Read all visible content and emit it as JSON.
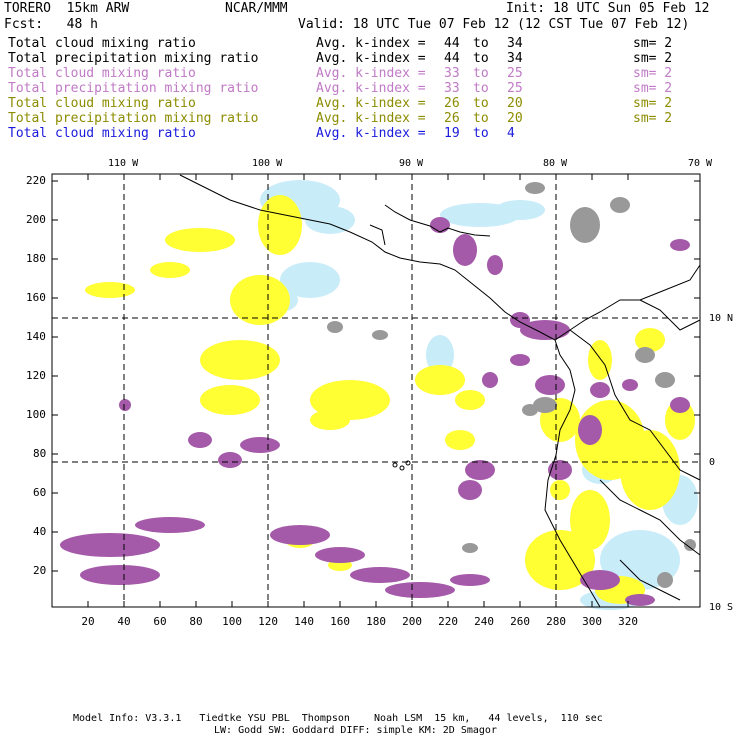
{
  "header": {
    "model": "TORERO  15km ARW",
    "org": "NCAR/MMM",
    "init": "Init: 18 UTC Sun 05 Feb 12",
    "fcst": "Fcst:   48 h",
    "valid": "Valid: 18 UTC Tue 07 Feb 12 (12 CST Tue 07 Feb 12)"
  },
  "legend": [
    {
      "field": "Total cloud mixing ratio",
      "avg": "Avg. k-index =",
      "from": "44",
      "to_word": "to",
      "to": "34",
      "sm": "sm= 2",
      "color": "#000000"
    },
    {
      "field": "Total precipitation mixing ratio",
      "avg": "Avg. k-index =",
      "from": "44",
      "to_word": "to",
      "to": "34",
      "sm": "sm= 2",
      "color": "#000000"
    },
    {
      "field": "Total cloud mixing ratio",
      "avg": "Avg. k-index =",
      "from": "33",
      "to_word": "to",
      "to": "25",
      "sm": "sm= 2",
      "color": "#c07ac6"
    },
    {
      "field": "Total precipitation mixing ratio",
      "avg": "Avg. k-index =",
      "from": "33",
      "to_word": "to",
      "to": "25",
      "sm": "sm= 2",
      "color": "#c07ac6"
    },
    {
      "field": "Total cloud mixing ratio",
      "avg": "Avg. k-index =",
      "from": "26",
      "to_word": "to",
      "to": "20",
      "sm": "sm= 2",
      "color": "#8c8c00"
    },
    {
      "field": "Total precipitation mixing ratio",
      "avg": "Avg. k-index =",
      "from": "26",
      "to_word": "to",
      "to": "20",
      "sm": "sm= 2",
      "color": "#8c8c00"
    },
    {
      "field": "Total cloud mixing ratio",
      "avg": "Avg. k-index =",
      "from": "19",
      "to_word": "to",
      "to": "4",
      "sm": "",
      "color": "#1a1adc"
    }
  ],
  "map": {
    "top_lon_labels": [
      "110 W",
      "100 W",
      "90 W",
      "80 W",
      "70 W"
    ],
    "right_lat_labels": [
      "10 N",
      "0",
      "10 S"
    ],
    "x_ticks": [
      "20",
      "40",
      "60",
      "80",
      "100",
      "120",
      "140",
      "160",
      "180",
      "200",
      "220",
      "240",
      "260",
      "280",
      "300",
      "320"
    ],
    "y_ticks": [
      "20",
      "40",
      "60",
      "80",
      "100",
      "120",
      "140",
      "160",
      "180",
      "200",
      "220"
    ],
    "colors": {
      "cloud_high": "#999999",
      "precip_high": "#a45aa8",
      "cloud_mid": "#ffff33",
      "precip_mid": "#ffff99",
      "cloud_low": "#c8ecf8"
    }
  },
  "footer": {
    "line1": "Model Info: V3.3.1   Tiedtke YSU PBL  Thompson    Noah LSM  15 km,   44 levels,  110 sec",
    "line2": "LW: Godd SW: Goddard DIFF: simple KM: 2D Smagor"
  }
}
